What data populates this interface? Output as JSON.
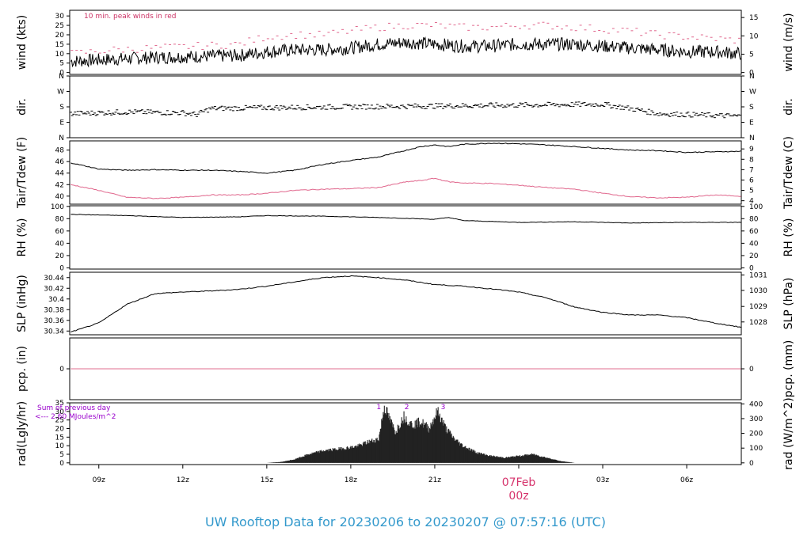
{
  "title": "UW Rooftop Data for 20230206  to  20230207 @ 07:57:16  (UTC)",
  "colors": {
    "frame": "#000000",
    "peak": "#e0668c",
    "dew": "#e0668c",
    "pcp": "#e06f8f",
    "title": "#3399cc",
    "purple": "#9900cc",
    "date": "#d6336c"
  },
  "chart_data": {
    "type": "line",
    "x_start_utc": "2023-02-06 07:57",
    "x_end_utc": "2023-02-07 07:57",
    "x_ticks": [
      "09z",
      "12z",
      "15z",
      "18z",
      "21z",
      "00z",
      "03z",
      "06z"
    ],
    "x_tick_hours": [
      9,
      12,
      15,
      18,
      21,
      24,
      27,
      30
    ],
    "date_marker": {
      "label": "07Feb",
      "sub": "00z"
    },
    "panels": [
      {
        "id": "wind",
        "ylabel": "wind (kts)",
        "ylabel_right": "wind (m/s)",
        "ylim": [
          -1,
          33
        ],
        "yticks": [
          0,
          5,
          10,
          15,
          20,
          25,
          30
        ],
        "right_ticks": [
          "0",
          "5",
          "10",
          "15"
        ],
        "right_tick_vals": [
          0,
          9.72,
          19.44,
          29.16
        ],
        "annotation": "10 min. peak winds in red",
        "series": [
          {
            "name": "wind speed",
            "hours": [
              8.0,
              9.5,
              11,
              12.5,
              14,
              15,
              16,
              17,
              18,
              19,
              20,
              21,
              22,
              23,
              24,
              25,
              26,
              27,
              28,
              29,
              30,
              31,
              31.95
            ],
            "values": [
              6,
              7,
              8,
              8.5,
              9,
              11,
              12,
              12,
              13,
              15,
              16,
              15,
              14,
              14,
              15,
              15,
              15,
              14,
              13,
              12,
              11,
              11,
              10
            ]
          },
          {
            "name": "peak",
            "hours": [
              8.0,
              9.5,
              11,
              12.5,
              14,
              15,
              16,
              17,
              18,
              19,
              20,
              21,
              22,
              23,
              24,
              25,
              26,
              27,
              28,
              29,
              30,
              31,
              31.95
            ],
            "values": [
              10,
              12,
              13,
              14,
              15,
              19,
              20,
              20,
              22,
              24,
              25,
              25,
              24,
              24,
              25,
              25,
              24,
              23,
              22,
              20,
              19,
              18,
              17
            ]
          }
        ]
      },
      {
        "id": "dir",
        "ylabel": "dir.",
        "ylabel_right": "dir.",
        "ylim": [
          0,
          360
        ],
        "ytick_labels": [
          "N",
          "E",
          "S",
          "W",
          "N"
        ],
        "yticks": [
          0,
          90,
          180,
          270,
          360
        ],
        "series": [
          {
            "name": "direction",
            "hours": [
              8.0,
              10,
              12,
              12.5,
              13,
              15,
              18,
              21,
              24,
              27,
              28,
              29,
              31.95
            ],
            "values": [
              140,
              150,
              145,
              135,
              170,
              175,
              180,
              185,
              190,
              195,
              170,
              140,
              125
            ]
          }
        ]
      },
      {
        "id": "temp",
        "ylabel": "Tair/Tdew (F)",
        "ylabel_right": "Tair/Tdew (C)",
        "ylim": [
          38.6,
          49.6
        ],
        "yticks": [
          40,
          42,
          44,
          46,
          48
        ],
        "right_ticks": [
          "4",
          "5",
          "6",
          "7",
          "8",
          "9"
        ],
        "right_tick_vals": [
          39.2,
          41,
          42.8,
          44.6,
          46.4,
          48.2
        ],
        "series": [
          {
            "name": "Tair",
            "hours": [
              8.0,
              9,
              10,
              11,
              12,
              13,
              14,
              15,
              16,
              17,
              18,
              19,
              20,
              20.5,
              21,
              21.5,
              22,
              23,
              24,
              25,
              26,
              27,
              28,
              29,
              30,
              31,
              31.95
            ],
            "values": [
              45.8,
              44.7,
              44.5,
              44.6,
              44.5,
              44.5,
              44.3,
              44.0,
              44.5,
              45.5,
              46.2,
              46.8,
              48.0,
              48.6,
              48.9,
              48.6,
              49.0,
              49.2,
              49.1,
              48.9,
              48.6,
              48.3,
              48.0,
              47.9,
              47.6,
              47.7,
              47.8
            ]
          },
          {
            "name": "Tdew",
            "hours": [
              8.0,
              9,
              10,
              11,
              12,
              13,
              14,
              15,
              16,
              17,
              18,
              19,
              20,
              20.5,
              21,
              21.5,
              22,
              23,
              24,
              25,
              26,
              27,
              28,
              29,
              30,
              31,
              31.95
            ],
            "values": [
              42.0,
              41.0,
              39.8,
              39.6,
              39.8,
              40.2,
              40.2,
              40.5,
              41.0,
              41.2,
              41.3,
              41.5,
              42.5,
              42.7,
              43.1,
              42.5,
              42.3,
              42.2,
              41.9,
              41.5,
              41.2,
              40.5,
              39.9,
              39.7,
              39.8,
              40.2,
              40.0
            ]
          }
        ]
      },
      {
        "id": "rh",
        "ylabel": "RH (%)",
        "ylabel_right": "RH (%)",
        "ylim": [
          -2,
          101
        ],
        "yticks": [
          0,
          20,
          40,
          60,
          80,
          100
        ],
        "right_ticks": [
          "0",
          "20",
          "40",
          "60",
          "80",
          "100"
        ],
        "right_tick_vals": [
          0,
          20,
          40,
          60,
          80,
          100
        ],
        "series": [
          {
            "name": "RH",
            "hours": [
              8.0,
              10,
              12,
              14,
              15,
              17,
              19,
              21,
              21.5,
              22,
              24,
              26,
              28,
              30,
              31.95
            ],
            "values": [
              87,
              85,
              82,
              83,
              85,
              84,
              82,
              79,
              82,
              77,
              74,
              75,
              73,
              74,
              74
            ]
          }
        ]
      },
      {
        "id": "slp",
        "ylabel": "SLP (inHg)",
        "ylabel_right": "SLP (hPa)",
        "ylim": [
          30.333,
          30.45
        ],
        "yticks": [
          30.34,
          30.36,
          30.38,
          30.4,
          30.42,
          30.44
        ],
        "right_ticks": [
          "1028",
          "1029",
          "1030",
          "1031"
        ],
        "right_tick_vals": [
          30.357,
          30.386,
          30.416,
          30.445
        ],
        "series": [
          {
            "name": "SLP",
            "hours": [
              8.0,
              9,
              10,
              11,
              12,
              13,
              14,
              15,
              16,
              17,
              18,
              19,
              20,
              21,
              22,
              23,
              24,
              25,
              26,
              27,
              28,
              29,
              30,
              31,
              31.95
            ],
            "values": [
              30.338,
              30.355,
              30.39,
              30.41,
              30.413,
              30.415,
              30.418,
              30.424,
              30.432,
              30.44,
              30.443,
              30.44,
              30.435,
              30.427,
              30.424,
              30.419,
              30.413,
              30.402,
              30.385,
              30.375,
              30.37,
              30.37,
              30.365,
              30.355,
              30.347
            ]
          }
        ]
      },
      {
        "id": "pcp",
        "ylabel": "pcp. (in)",
        "ylabel_right": "pcp. (mm)",
        "ylim": [
          -1,
          1
        ],
        "yticks": [
          0
        ],
        "right_ticks": [
          "0"
        ],
        "right_tick_vals": [
          0
        ],
        "series": [
          {
            "name": "precip",
            "hours": [
              8.0,
              31.95
            ],
            "values": [
              0,
              0
            ]
          }
        ]
      },
      {
        "id": "rad",
        "ylabel": "rad(Lgly/hr)",
        "ylabel_right": "rad (W/m^2)",
        "ylim": [
          -1,
          35
        ],
        "yticks": [
          0,
          5,
          10,
          15,
          20,
          25,
          30,
          35
        ],
        "right_ticks": [
          "0",
          "100",
          "200",
          "300",
          "400"
        ],
        "right_tick_vals": [
          0,
          8.6,
          17.2,
          25.8,
          34.4
        ],
        "annotations": [
          "Sum of previous day",
          "<--- 2.60 MJoules/m^2"
        ],
        "peak_labels": [
          "1",
          "2",
          "3"
        ],
        "peak_label_hours": [
          19.0,
          20.0,
          21.3
        ],
        "series": [
          {
            "name": "radiation",
            "hours": [
              15.0,
              15.5,
              16,
              16.5,
              17,
              17.5,
              18,
              18.3,
              18.6,
              19,
              19.2,
              19.4,
              19.6,
              19.9,
              20.2,
              20.5,
              20.8,
              21.1,
              21.4,
              21.7,
              22,
              22.5,
              23,
              23.5,
              24,
              24.5,
              25,
              25.5,
              26
            ],
            "values": [
              0,
              0.5,
              2,
              5,
              7,
              8,
              9,
              10,
              12,
              14,
              33,
              25,
              18,
              27,
              22,
              24,
              20,
              30,
              20,
              14,
              10,
              6,
              4,
              3,
              4,
              5,
              3,
              1,
              0
            ]
          }
        ]
      }
    ]
  }
}
